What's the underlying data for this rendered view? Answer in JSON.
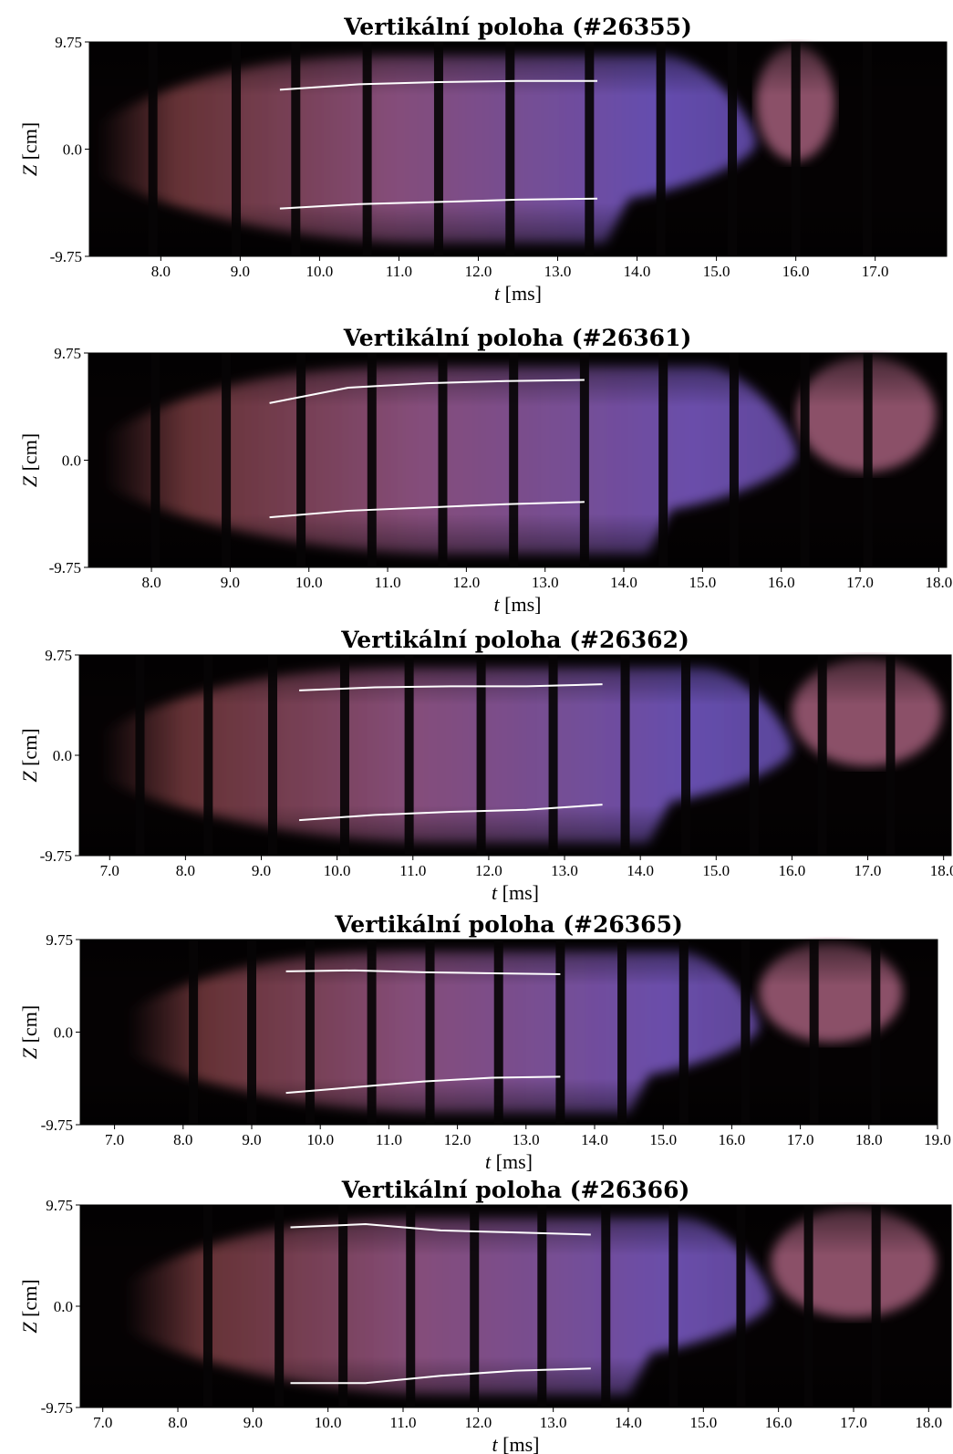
{
  "chart_data": [
    {
      "type": "line",
      "title": "Vertikální poloha (#26355)",
      "xlabel_var": "t",
      "xlabel_unit": "[ms]",
      "ylabel_var": "Z",
      "ylabel_unit": "[cm]",
      "xlim": [
        7.1,
        17.9
      ],
      "ylim": [
        -9.75,
        9.75
      ],
      "xticks": [
        "8.0",
        "9.0",
        "10.0",
        "11.0",
        "12.0",
        "13.0",
        "14.0",
        "15.0",
        "16.0",
        "17.0"
      ],
      "yticks": [
        "9.75",
        "0.0",
        "-9.75"
      ],
      "frame_boundaries": [
        7.9,
        8.95,
        9.7,
        10.6,
        11.5,
        12.4,
        13.4,
        14.3,
        15.2,
        16.0,
        16.9
      ],
      "series": [
        {
          "x": [
            9.5,
            10.5,
            11.5,
            12.5,
            13.5
          ],
          "values": [
            5.4,
            5.9,
            6.1,
            6.2,
            6.2
          ]
        },
        {
          "x": [
            9.5,
            10.5,
            11.5,
            12.5,
            13.5
          ],
          "values": [
            -5.4,
            -5.0,
            -4.8,
            -4.6,
            -4.5
          ]
        }
      ],
      "plume": {
        "start": 7.2,
        "pinch": 15.5,
        "end": 16.4,
        "colors": [
          "#b3595f",
          "#9b5a8f",
          "#6f55c2"
        ],
        "late_color": "#b86a8a"
      }
    },
    {
      "type": "line",
      "title": "Vertikální poloha (#26361)",
      "xlabel_var": "t",
      "xlabel_unit": "[ms]",
      "ylabel_var": "Z",
      "ylabel_unit": "[cm]",
      "xlim": [
        7.2,
        18.1
      ],
      "ylim": [
        -9.75,
        9.75
      ],
      "xticks": [
        "8.0",
        "9.0",
        "10.0",
        "11.0",
        "12.0",
        "13.0",
        "14.0",
        "15.0",
        "16.0",
        "17.0",
        "18.0"
      ],
      "yticks": [
        "9.75",
        "0.0",
        "-9.75"
      ],
      "frame_boundaries": [
        8.05,
        8.95,
        9.9,
        10.8,
        11.7,
        12.6,
        13.5,
        14.5,
        15.4,
        16.3,
        17.1
      ],
      "series": [
        {
          "x": [
            9.5,
            10.5,
            11.5,
            12.5,
            13.5
          ],
          "values": [
            5.2,
            6.6,
            7.0,
            7.2,
            7.3
          ]
        },
        {
          "x": [
            9.5,
            10.5,
            11.5,
            12.5,
            13.5
          ],
          "values": [
            -5.2,
            -4.6,
            -4.3,
            -4.0,
            -3.8
          ]
        }
      ],
      "plume": {
        "start": 7.4,
        "pinch": 16.2,
        "end": 17.8,
        "colors": [
          "#b3595f",
          "#9b5a8f",
          "#7556bd"
        ],
        "late_color": "#b86a8a"
      }
    },
    {
      "type": "line",
      "title": "Vertikální poloha (#26362)",
      "xlabel_var": "t",
      "xlabel_unit": "[ms]",
      "ylabel_var": "Z",
      "ylabel_unit": "[cm]",
      "xlim": [
        6.6,
        18.1
      ],
      "ylim": [
        -9.75,
        9.75
      ],
      "xticks": [
        "7.0",
        "8.0",
        "9.0",
        "10.0",
        "11.0",
        "12.0",
        "13.0",
        "14.0",
        "15.0",
        "16.0",
        "17.0",
        "18.0"
      ],
      "yticks": [
        "9.75",
        "0.0",
        "-9.75"
      ],
      "frame_boundaries": [
        7.4,
        8.3,
        9.15,
        10.1,
        10.95,
        11.9,
        12.85,
        13.8,
        14.6,
        15.5,
        16.4,
        17.3
      ],
      "series": [
        {
          "x": [
            9.5,
            10.5,
            11.5,
            12.5,
            13.5
          ],
          "values": [
            6.3,
            6.6,
            6.7,
            6.7,
            6.9
          ]
        },
        {
          "x": [
            9.5,
            10.5,
            11.5,
            12.5,
            13.5
          ],
          "values": [
            -6.3,
            -5.8,
            -5.5,
            -5.3,
            -4.8
          ]
        }
      ],
      "plume": {
        "start": 6.9,
        "pinch": 16.0,
        "end": 17.8,
        "colors": [
          "#b3595f",
          "#9b5a8f",
          "#7056c0"
        ],
        "late_color": "#b86a8a"
      }
    },
    {
      "type": "line",
      "title": "Vertikální poloha (#26365)",
      "xlabel_var": "t",
      "xlabel_unit": "[ms]",
      "ylabel_var": "Z",
      "ylabel_unit": "[cm]",
      "xlim": [
        6.5,
        19.0
      ],
      "ylim": [
        -9.75,
        9.75
      ],
      "xticks": [
        "7.0",
        "8.0",
        "9.0",
        "10.0",
        "11.0",
        "12.0",
        "13.0",
        "14.0",
        "15.0",
        "16.0",
        "17.0",
        "18.0",
        "19.0"
      ],
      "yticks": [
        "9.75",
        "0.0",
        "-9.75"
      ],
      "frame_boundaries": [
        8.15,
        9.0,
        9.85,
        10.75,
        11.6,
        12.6,
        13.5,
        14.4,
        15.3,
        16.2,
        17.2,
        18.1
      ],
      "series": [
        {
          "x": [
            9.5,
            10.5,
            11.5,
            12.5,
            13.5
          ],
          "values": [
            6.4,
            6.5,
            6.3,
            6.2,
            6.1
          ]
        },
        {
          "x": [
            9.5,
            10.5,
            11.5,
            12.5,
            13.5
          ],
          "values": [
            -6.4,
            -5.8,
            -5.2,
            -4.8,
            -4.7
          ]
        }
      ],
      "plume": {
        "start": 7.2,
        "pinch": 16.4,
        "end": 18.3,
        "colors": [
          "#b3595f",
          "#9b5a8f",
          "#7556bd"
        ],
        "late_color": "#b86a8a"
      }
    },
    {
      "type": "line",
      "title": "Vertikální poloha (#26366)",
      "xlabel_var": "t",
      "xlabel_unit": "[ms]",
      "ylabel_var": "Z",
      "ylabel_unit": "[cm]",
      "xlim": [
        6.7,
        18.3
      ],
      "ylim": [
        -9.75,
        9.75
      ],
      "xticks": [
        "7.0",
        "8.0",
        "9.0",
        "10.0",
        "11.0",
        "12.0",
        "13.0",
        "14.0",
        "15.0",
        "16.0",
        "17.0",
        "18.0"
      ],
      "yticks": [
        "9.75",
        "0.0",
        "-9.75"
      ],
      "frame_boundaries": [
        8.4,
        9.35,
        10.2,
        11.1,
        11.95,
        12.85,
        13.7,
        14.6,
        15.5,
        16.4,
        17.3
      ],
      "series": [
        {
          "x": [
            9.5,
            10.5,
            11.5,
            12.5,
            13.5
          ],
          "values": [
            7.6,
            7.9,
            7.3,
            7.1,
            6.9
          ]
        },
        {
          "x": [
            9.5,
            10.5,
            11.5,
            12.5,
            13.5
          ],
          "values": [
            -7.4,
            -7.4,
            -6.7,
            -6.2,
            -6.0
          ]
        }
      ],
      "plume": {
        "start": 7.3,
        "pinch": 15.9,
        "end": 17.9,
        "colors": [
          "#b3595f",
          "#9b5a8f",
          "#7556bd"
        ],
        "late_color": "#b86a8a"
      }
    }
  ]
}
